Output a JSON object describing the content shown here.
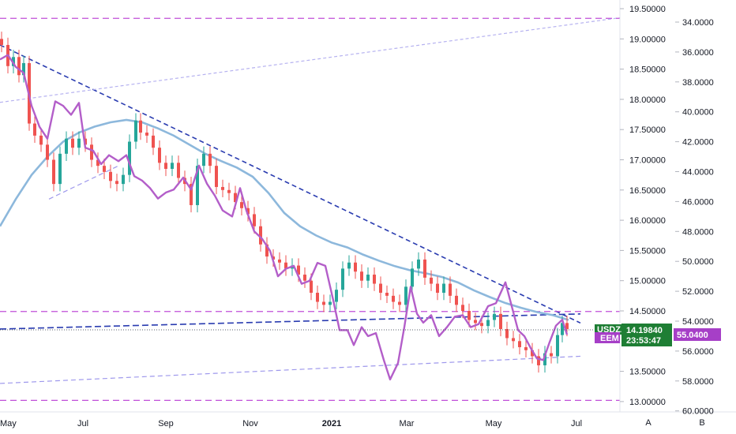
{
  "chart_data": {
    "type": "line",
    "x_ticks": [
      "May",
      "Jul",
      "Sep",
      "Nov",
      "2021",
      "Mar",
      "May",
      "Jul"
    ],
    "x_bold_tick": "2021",
    "left_axis": {
      "ticks": [
        "19.50000",
        "19.00000",
        "18.50000",
        "18.00000",
        "17.50000",
        "17.00000",
        "16.50000",
        "16.00000",
        "15.50000",
        "15.00000",
        "14.50000",
        "13.50000",
        "13.00000"
      ],
      "values": [
        19.5,
        19.0,
        18.5,
        18.0,
        17.5,
        17.0,
        16.5,
        16.0,
        15.5,
        15.0,
        14.5,
        13.5,
        13.0
      ],
      "range": [
        13.0,
        19.5
      ]
    },
    "right_axis": {
      "ticks": [
        "34.0000",
        "36.0000",
        "38.0000",
        "40.0000",
        "42.0000",
        "44.0000",
        "46.0000",
        "48.0000",
        "50.0000",
        "52.0000",
        "54.0000",
        "56.0000",
        "58.0000",
        "60.0000"
      ],
      "values": [
        34,
        36,
        38,
        40,
        42,
        44,
        46,
        48,
        50,
        52,
        54,
        56,
        58,
        60
      ],
      "inverted": true,
      "range": [
        34,
        60
      ]
    },
    "series": [
      {
        "name": "USDZAR",
        "style": "candlestick",
        "up_color": "#26a69a",
        "down_color": "#ef5350",
        "points": [
          [
            0,
            18.9
          ],
          [
            8,
            18.55
          ],
          [
            15,
            18.7
          ],
          [
            22,
            18.4
          ],
          [
            28,
            18.6
          ],
          [
            35,
            17.6
          ],
          [
            42,
            17.4
          ],
          [
            50,
            17.25
          ],
          [
            58,
            17.0
          ],
          [
            66,
            16.6
          ],
          [
            74,
            17.1
          ],
          [
            82,
            17.35
          ],
          [
            90,
            17.2
          ],
          [
            98,
            17.35
          ],
          [
            106,
            17.25
          ],
          [
            114,
            17.0
          ],
          [
            122,
            16.9
          ],
          [
            130,
            16.8
          ],
          [
            138,
            16.65
          ],
          [
            146,
            16.6
          ],
          [
            154,
            16.75
          ],
          [
            162,
            17.3
          ],
          [
            170,
            17.65
          ],
          [
            176,
            17.45
          ],
          [
            184,
            17.4
          ],
          [
            192,
            17.2
          ],
          [
            200,
            16.95
          ],
          [
            208,
            16.85
          ],
          [
            216,
            16.95
          ],
          [
            224,
            16.7
          ],
          [
            232,
            16.6
          ],
          [
            240,
            16.25
          ],
          [
            248,
            16.9
          ],
          [
            256,
            17.1
          ],
          [
            264,
            16.9
          ],
          [
            272,
            16.55
          ],
          [
            280,
            16.5
          ],
          [
            288,
            16.45
          ],
          [
            296,
            16.3
          ],
          [
            304,
            16.2
          ],
          [
            312,
            16.1
          ],
          [
            320,
            15.9
          ],
          [
            328,
            15.6
          ],
          [
            336,
            15.4
          ],
          [
            344,
            15.35
          ],
          [
            352,
            15.3
          ],
          [
            360,
            15.2
          ],
          [
            368,
            15.25
          ],
          [
            376,
            15.1
          ],
          [
            384,
            15.0
          ],
          [
            392,
            14.8
          ],
          [
            400,
            14.65
          ],
          [
            408,
            14.6
          ],
          [
            416,
            14.65
          ],
          [
            424,
            14.85
          ],
          [
            432,
            15.2
          ],
          [
            440,
            15.3
          ],
          [
            448,
            15.15
          ],
          [
            456,
            15.0
          ],
          [
            464,
            15.1
          ],
          [
            472,
            14.95
          ],
          [
            480,
            14.8
          ],
          [
            488,
            14.75
          ],
          [
            496,
            14.65
          ],
          [
            504,
            14.6
          ],
          [
            512,
            14.9
          ],
          [
            520,
            15.2
          ],
          [
            528,
            15.35
          ],
          [
            536,
            15.05
          ],
          [
            544,
            14.95
          ],
          [
            552,
            14.8
          ],
          [
            560,
            14.95
          ],
          [
            568,
            14.75
          ],
          [
            576,
            14.6
          ],
          [
            584,
            14.5
          ],
          [
            592,
            14.35
          ],
          [
            600,
            14.3
          ],
          [
            608,
            14.25
          ],
          [
            616,
            14.35
          ],
          [
            624,
            14.45
          ],
          [
            632,
            14.2
          ],
          [
            640,
            14.05
          ],
          [
            648,
            14.0
          ],
          [
            656,
            13.9
          ],
          [
            664,
            13.85
          ],
          [
            672,
            13.75
          ],
          [
            680,
            13.6
          ],
          [
            688,
            13.8
          ],
          [
            696,
            13.75
          ],
          [
            704,
            14.1
          ],
          [
            710,
            14.3
          ],
          [
            716,
            14.2
          ]
        ]
      },
      {
        "name": "EEM",
        "style": "line",
        "color": "#b35ec9",
        "points": [
          [
            0,
            36.5
          ],
          [
            10,
            36.2
          ],
          [
            20,
            37.0
          ],
          [
            30,
            37.4
          ],
          [
            40,
            39.6
          ],
          [
            50,
            41.0
          ],
          [
            60,
            41.8
          ],
          [
            70,
            39.3
          ],
          [
            80,
            39.6
          ],
          [
            90,
            40.2
          ],
          [
            100,
            39.4
          ],
          [
            108,
            42.4
          ],
          [
            118,
            42.6
          ],
          [
            128,
            43.5
          ],
          [
            138,
            42.9
          ],
          [
            150,
            43.3
          ],
          [
            160,
            42.9
          ],
          [
            170,
            44.3
          ],
          [
            180,
            44.6
          ],
          [
            190,
            45.1
          ],
          [
            200,
            45.8
          ],
          [
            210,
            45.4
          ],
          [
            220,
            45.2
          ],
          [
            232,
            44.4
          ],
          [
            242,
            45.2
          ],
          [
            252,
            43.6
          ],
          [
            262,
            44.8
          ],
          [
            272,
            45.6
          ],
          [
            282,
            46.6
          ],
          [
            294,
            47.0
          ],
          [
            304,
            45.1
          ],
          [
            312,
            46.6
          ],
          [
            322,
            48.0
          ],
          [
            332,
            48.5
          ],
          [
            342,
            49.3
          ],
          [
            352,
            51.0
          ],
          [
            362,
            50.5
          ],
          [
            372,
            50.3
          ],
          [
            382,
            51.5
          ],
          [
            392,
            51.3
          ],
          [
            402,
            50.1
          ],
          [
            412,
            50.3
          ],
          [
            422,
            52.6
          ],
          [
            430,
            54.6
          ],
          [
            440,
            54.6
          ],
          [
            448,
            55.6
          ],
          [
            458,
            54.4
          ],
          [
            466,
            55.0
          ],
          [
            476,
            54.8
          ],
          [
            486,
            56.6
          ],
          [
            494,
            57.9
          ],
          [
            504,
            56.8
          ],
          [
            512,
            54.4
          ],
          [
            520,
            51.7
          ],
          [
            528,
            53.5
          ],
          [
            536,
            54.1
          ],
          [
            546,
            53.6
          ],
          [
            556,
            55.0
          ],
          [
            566,
            54.4
          ],
          [
            576,
            53.7
          ],
          [
            586,
            53.6
          ],
          [
            596,
            54.4
          ],
          [
            606,
            54.2
          ],
          [
            618,
            53.0
          ],
          [
            628,
            52.8
          ],
          [
            640,
            51.4
          ],
          [
            648,
            53.0
          ],
          [
            656,
            54.6
          ],
          [
            664,
            55.0
          ],
          [
            672,
            55.8
          ],
          [
            680,
            56.5
          ],
          [
            688,
            56.6
          ],
          [
            696,
            55.4
          ],
          [
            704,
            54.3
          ],
          [
            712,
            53.9
          ],
          [
            718,
            54.9
          ]
        ]
      },
      {
        "name": "moving-average",
        "style": "line",
        "color": "#8db8dc",
        "points": [
          [
            0,
            15.9
          ],
          [
            20,
            16.35
          ],
          [
            40,
            16.75
          ],
          [
            60,
            17.05
          ],
          [
            80,
            17.3
          ],
          [
            100,
            17.45
          ],
          [
            120,
            17.55
          ],
          [
            140,
            17.62
          ],
          [
            160,
            17.66
          ],
          [
            180,
            17.62
          ],
          [
            200,
            17.52
          ],
          [
            220,
            17.4
          ],
          [
            240,
            17.25
          ],
          [
            260,
            17.1
          ],
          [
            280,
            16.98
          ],
          [
            300,
            16.87
          ],
          [
            320,
            16.72
          ],
          [
            340,
            16.45
          ],
          [
            360,
            16.12
          ],
          [
            380,
            15.9
          ],
          [
            400,
            15.75
          ],
          [
            420,
            15.63
          ],
          [
            440,
            15.55
          ],
          [
            460,
            15.43
          ],
          [
            480,
            15.33
          ],
          [
            500,
            15.24
          ],
          [
            520,
            15.17
          ],
          [
            540,
            15.12
          ],
          [
            560,
            15.06
          ],
          [
            580,
            14.97
          ],
          [
            600,
            14.84
          ],
          [
            620,
            14.73
          ],
          [
            640,
            14.63
          ],
          [
            660,
            14.55
          ],
          [
            680,
            14.48
          ],
          [
            700,
            14.43
          ],
          [
            720,
            14.35
          ]
        ]
      }
    ],
    "trendlines": [
      {
        "name": "resistance-trendline",
        "color": "#2a3cb0",
        "dash": "6,4",
        "from": [
          0,
          18.9
        ],
        "to": [
          735,
          14.3
        ]
      },
      {
        "name": "support-trendline",
        "color": "#2a3cb0",
        "dash": "8,4",
        "from": [
          0,
          14.2
        ],
        "to": [
          735,
          14.45
        ]
      },
      {
        "name": "channel-upper-line",
        "color": "#b6b2f0",
        "dash": "4,3",
        "from": [
          0,
          17.95
        ],
        "to": [
          785,
          19.35
        ]
      },
      {
        "name": "channel-lower-line",
        "color": "#9e98ec",
        "dash": "6,4",
        "from": [
          0,
          13.3
        ],
        "to": [
          735,
          13.75
        ]
      },
      {
        "name": "eem-lower-line",
        "color": "#9e98ec",
        "dash": "6,4",
        "from": [
          62,
          16.35
        ],
        "to": [
          150,
          16.9
        ]
      },
      {
        "name": "horizontal-level-top",
        "color": "#c04fd8",
        "dash": "8,5",
        "from": [
          0,
          19.34
        ],
        "to": [
          785,
          19.34
        ]
      },
      {
        "name": "horizontal-level-mid",
        "color": "#c04fd8",
        "dash": "8,5",
        "from": [
          0,
          14.49
        ],
        "to": [
          785,
          14.49
        ]
      },
      {
        "name": "horizontal-level-bottom",
        "color": "#c04fd8",
        "dash": "8,5",
        "from": [
          0,
          13.02
        ],
        "to": [
          785,
          13.02
        ]
      }
    ],
    "current_price": {
      "value": 14.2,
      "label": "14.19840",
      "countdown": "23:53:47",
      "symbol": "USDZAR",
      "color": "#1e7e34"
    },
    "eem_price": {
      "value": "55.0400",
      "symbol": "EEM",
      "color": "#a63fc7"
    },
    "corner_buttons": [
      "A",
      "B"
    ],
    "grid": false,
    "legend": "none"
  }
}
